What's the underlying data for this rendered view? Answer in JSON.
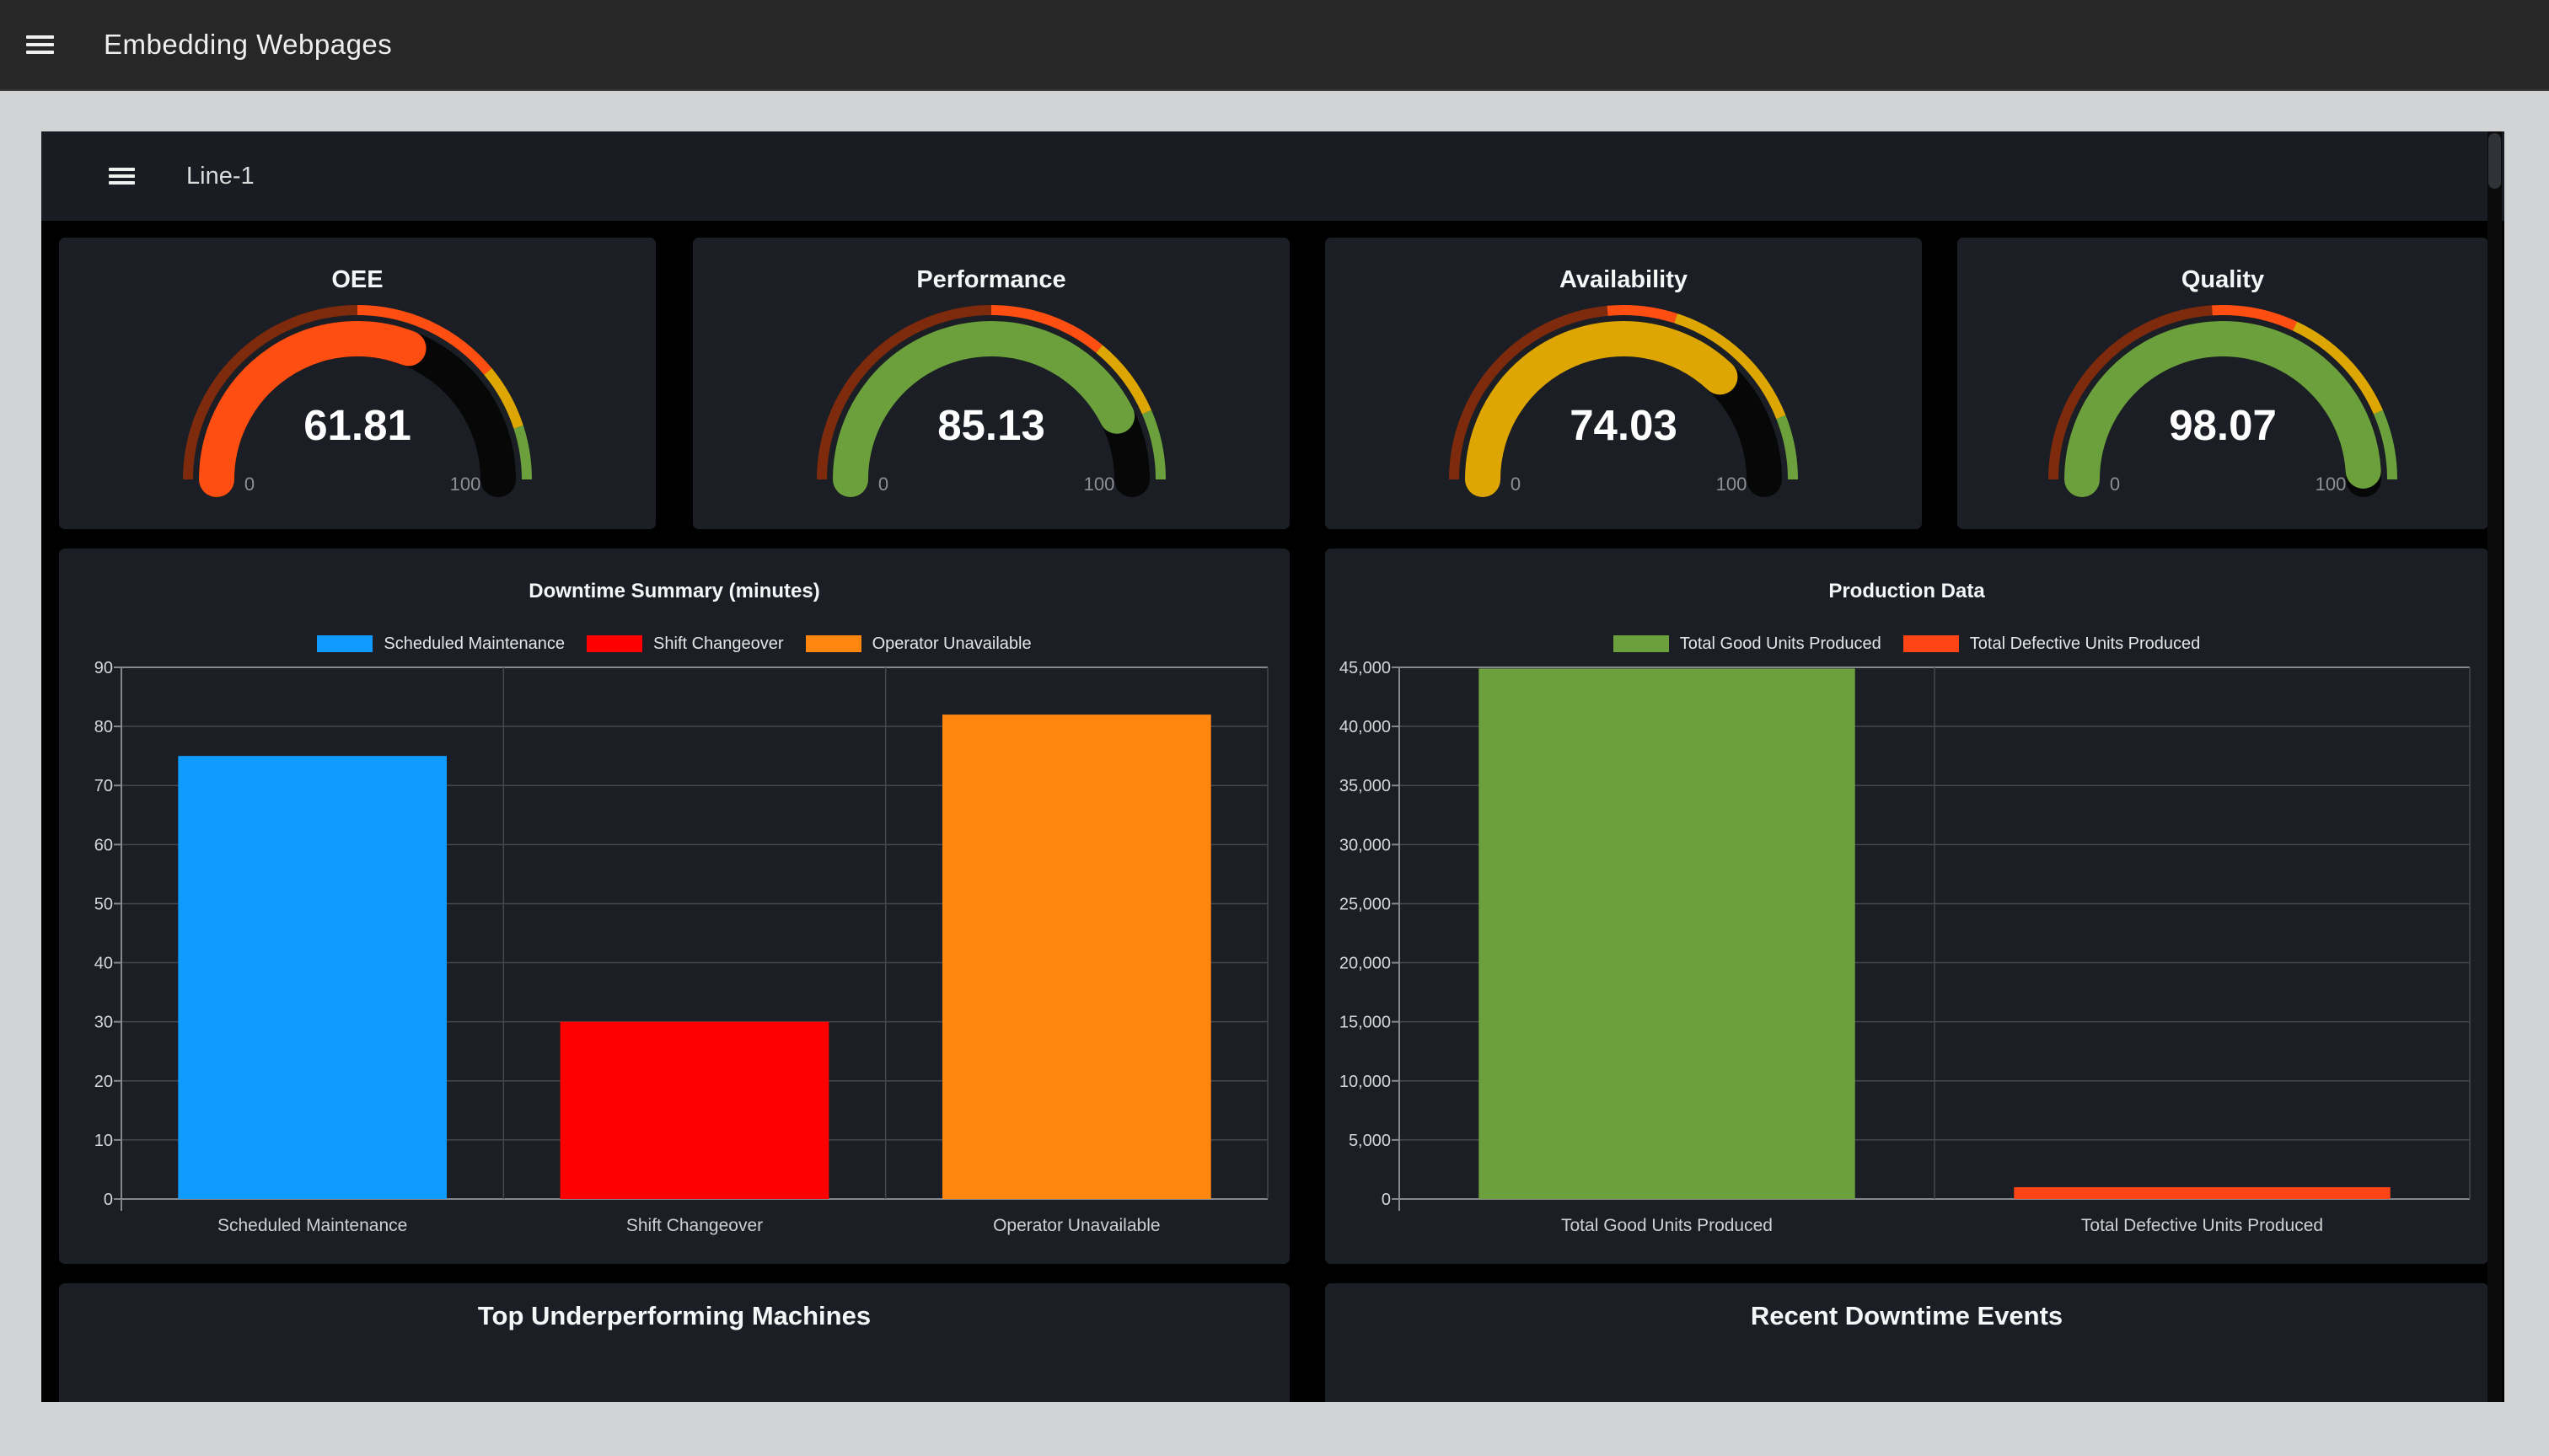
{
  "app_header": {
    "title": "Embedding Webpages"
  },
  "dashboard": {
    "title": "Line-1"
  },
  "panels_bottom": [
    {
      "title": "Top Underperforming Machines"
    },
    {
      "title": "Recent Downtime Events"
    }
  ],
  "chart_data": [
    {
      "type": "gauge",
      "title": "OEE",
      "value": 61.81,
      "value_text": "61.81",
      "min": 0,
      "max": 100,
      "min_label": "0",
      "max_label": "100",
      "value_color": "#FF4E11",
      "thresholds": [
        {
          "to": 0.5,
          "color": "#7E2A0C"
        },
        {
          "to": 0.78,
          "color": "#FF4E11"
        },
        {
          "to": 0.9,
          "color": "#DEA602"
        },
        {
          "to": 1.0,
          "color": "#6BA03D"
        }
      ]
    },
    {
      "type": "gauge",
      "title": "Performance",
      "value": 85.13,
      "value_text": "85.13",
      "min": 0,
      "max": 100,
      "min_label": "0",
      "max_label": "100",
      "value_color": "#6BA03D",
      "thresholds": [
        {
          "to": 0.5,
          "color": "#7E2A0C"
        },
        {
          "to": 0.72,
          "color": "#FF4E11"
        },
        {
          "to": 0.87,
          "color": "#DEA602"
        },
        {
          "to": 1.0,
          "color": "#6BA03D"
        }
      ]
    },
    {
      "type": "gauge",
      "title": "Availability",
      "value": 74.03,
      "value_text": "74.03",
      "min": 0,
      "max": 100,
      "min_label": "0",
      "max_label": "100",
      "value_color": "#DEA602",
      "thresholds": [
        {
          "to": 0.47,
          "color": "#7E2A0C"
        },
        {
          "to": 0.6,
          "color": "#FF4E11"
        },
        {
          "to": 0.88,
          "color": "#DEA602"
        },
        {
          "to": 1.0,
          "color": "#6BA03D"
        }
      ]
    },
    {
      "type": "gauge",
      "title": "Quality",
      "value": 98.07,
      "value_text": "98.07",
      "min": 0,
      "max": 100,
      "min_label": "0",
      "max_label": "100",
      "value_color": "#6BA03D",
      "thresholds": [
        {
          "to": 0.48,
          "color": "#7E2A0C"
        },
        {
          "to": 0.64,
          "color": "#FF4E11"
        },
        {
          "to": 0.87,
          "color": "#DEA602"
        },
        {
          "to": 1.0,
          "color": "#6BA03D"
        }
      ]
    },
    {
      "type": "bar",
      "title": "Downtime Summary (minutes)",
      "ylim": [
        0,
        90
      ],
      "ytick_step": 10,
      "grid": true,
      "legend_position": "top",
      "categories": [
        "Scheduled Maintenance",
        "Shift Changeover",
        "Operator Unavailable"
      ],
      "items": [
        {
          "label": "Scheduled Maintenance",
          "value": 75,
          "color": "#0F9BFF"
        },
        {
          "label": "Shift Changeover",
          "value": 30,
          "color": "#FF0000"
        },
        {
          "label": "Operator Unavailable",
          "value": 82,
          "color": "#FF870F"
        }
      ]
    },
    {
      "type": "bar",
      "title": "Production Data",
      "ylim": [
        0,
        45000
      ],
      "ytick_step": 5000,
      "grid": true,
      "legend_position": "top",
      "categories": [
        "Total Good Units Produced",
        "Total Defective Units Produced"
      ],
      "items": [
        {
          "label": "Total Good Units Produced",
          "value": 44900,
          "color": "#6BA03D"
        },
        {
          "label": "Total Defective Units Produced",
          "value": 1000,
          "color": "#FF4516"
        }
      ]
    }
  ]
}
